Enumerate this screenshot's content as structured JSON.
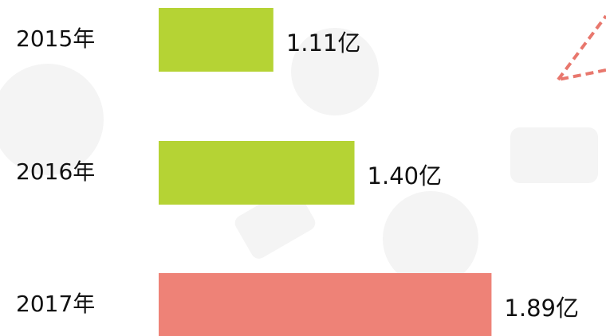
{
  "chart_data": {
    "type": "barh",
    "categories": [
      "2015年",
      "2016年",
      "2017年"
    ],
    "values": [
      1.11,
      1.4,
      1.89
    ],
    "value_labels": [
      "1.11亿",
      "1.40亿",
      "1.89亿"
    ],
    "colors": [
      "#b5d334",
      "#b5d334",
      "#ee8277"
    ],
    "xlim": [
      0.7,
      2.0
    ]
  }
}
